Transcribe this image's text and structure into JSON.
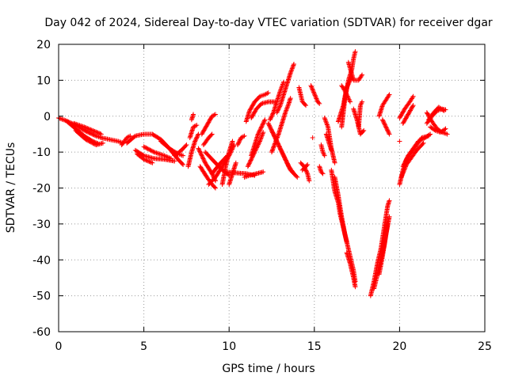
{
  "chart_data": {
    "type": "scatter",
    "title": "Day 042 of 2024, Sidereal Day-to-day VTEC variation (SDTVAR) for receiver dgar",
    "xlabel": "GPS time / hours",
    "ylabel": "SDTVAR / TECUs",
    "xlim": [
      0,
      25
    ],
    "ylim": [
      -60,
      20
    ],
    "xticks": [
      "0",
      "5",
      "10",
      "15",
      "20",
      "25"
    ],
    "yticks": [
      "20",
      "10",
      "0",
      "-10",
      "-20",
      "-30",
      "-40",
      "-50",
      "-60"
    ],
    "grid": true,
    "marker": "+",
    "color": "#ff0000",
    "tracks": [
      [
        [
          0.0,
          -0.5
        ],
        [
          0.4,
          -1.2
        ],
        [
          1.0,
          -2.5
        ],
        [
          1.6,
          -4.2
        ],
        [
          2.2,
          -5.5
        ],
        [
          2.5,
          -6.0
        ]
      ],
      [
        [
          0.5,
          -1.5
        ],
        [
          1.0,
          -3.5
        ],
        [
          1.5,
          -5.5
        ],
        [
          2.0,
          -7.0
        ],
        [
          2.3,
          -7.6
        ]
      ],
      [
        [
          0.9,
          -2.0
        ],
        [
          1.5,
          -3.0
        ],
        [
          2.0,
          -4.0
        ],
        [
          2.5,
          -5.0
        ]
      ],
      [
        [
          1.0,
          -4.0
        ],
        [
          1.6,
          -6.5
        ],
        [
          2.2,
          -8.0
        ],
        [
          2.6,
          -7.5
        ]
      ],
      [
        [
          2.5,
          -6.0
        ],
        [
          3.0,
          -6.5
        ],
        [
          3.5,
          -7.0
        ],
        [
          3.8,
          -7.5
        ]
      ],
      [
        [
          3.7,
          -8.0
        ],
        [
          4.0,
          -6.0
        ],
        [
          4.2,
          -5.5
        ]
      ],
      [
        [
          4.0,
          -7.5
        ],
        [
          4.5,
          -5.5
        ],
        [
          5.0,
          -5.0
        ],
        [
          5.5,
          -5.0
        ],
        [
          6.0,
          -6.5
        ],
        [
          6.5,
          -9.0
        ],
        [
          7.0,
          -12.0
        ],
        [
          7.3,
          -13.5
        ]
      ],
      [
        [
          4.5,
          -9.5
        ],
        [
          5.0,
          -11.0
        ],
        [
          5.6,
          -11.8
        ],
        [
          6.2,
          -12.0
        ],
        [
          6.8,
          -12.5
        ]
      ],
      [
        [
          4.6,
          -10.5
        ],
        [
          5.0,
          -12.0
        ],
        [
          5.5,
          -13.0
        ]
      ],
      [
        [
          5.0,
          -8.5
        ],
        [
          5.6,
          -10.0
        ],
        [
          6.2,
          -11.0
        ],
        [
          6.6,
          -11.8
        ]
      ],
      [
        [
          6.0,
          -7.0
        ],
        [
          6.5,
          -9.0
        ],
        [
          7.0,
          -10.5
        ],
        [
          7.3,
          -11.0
        ]
      ],
      [
        [
          6.8,
          -11.0
        ],
        [
          7.2,
          -9.5
        ],
        [
          7.5,
          -8.0
        ]
      ],
      [
        [
          7.7,
          -6.0
        ],
        [
          7.9,
          -3.0
        ],
        [
          8.1,
          -2.5
        ]
      ],
      [
        [
          7.6,
          -14.0
        ],
        [
          7.8,
          -10.0
        ],
        [
          8.0,
          -7.0
        ],
        [
          8.2,
          -5.0
        ]
      ],
      [
        [
          7.8,
          -1.0
        ],
        [
          7.9,
          0.5
        ]
      ],
      [
        [
          8.4,
          -5.0
        ],
        [
          8.7,
          -2.5
        ],
        [
          9.0,
          0.0
        ],
        [
          9.2,
          0.5
        ]
      ],
      [
        [
          8.2,
          -9.0
        ],
        [
          8.6,
          -13.0
        ],
        [
          9.0,
          -16.0
        ],
        [
          9.2,
          -18.0
        ]
      ],
      [
        [
          8.3,
          -14.0
        ],
        [
          8.7,
          -17.0
        ],
        [
          9.0,
          -19.0
        ],
        [
          9.2,
          -20.0
        ]
      ],
      [
        [
          8.6,
          -10.0
        ],
        [
          9.0,
          -12.0
        ],
        [
          9.5,
          -14.5
        ],
        [
          10.0,
          -16.5
        ]
      ],
      [
        [
          8.8,
          -19.0
        ],
        [
          9.2,
          -17.0
        ],
        [
          9.6,
          -14.0
        ],
        [
          10.0,
          -11.0
        ],
        [
          10.3,
          -8.0
        ]
      ],
      [
        [
          9.0,
          -16.0
        ],
        [
          9.5,
          -13.0
        ],
        [
          9.9,
          -11.0
        ]
      ],
      [
        [
          8.5,
          -8.0
        ],
        [
          8.8,
          -6.0
        ],
        [
          9.0,
          -5.0
        ]
      ],
      [
        [
          9.6,
          -19.0
        ],
        [
          9.8,
          -14.0
        ],
        [
          10.0,
          -10.0
        ],
        [
          10.2,
          -7.0
        ]
      ],
      [
        [
          10.0,
          -19.0
        ],
        [
          10.2,
          -16.0
        ],
        [
          10.4,
          -13.0
        ]
      ],
      [
        [
          9.8,
          -15.5
        ],
        [
          10.4,
          -15.8
        ],
        [
          11.0,
          -16.0
        ],
        [
          11.5,
          -16.5
        ]
      ],
      [
        [
          10.5,
          -8.0
        ],
        [
          10.7,
          -6.0
        ],
        [
          10.9,
          -5.5
        ]
      ],
      [
        [
          10.9,
          -17.0
        ],
        [
          11.2,
          -16.5
        ],
        [
          11.6,
          -16.0
        ],
        [
          12.0,
          -15.5
        ]
      ],
      [
        [
          11.3,
          -11.0
        ],
        [
          11.5,
          -8.0
        ],
        [
          11.7,
          -5.0
        ],
        [
          11.9,
          -3.0
        ],
        [
          12.1,
          -1.0
        ]
      ],
      [
        [
          11.1,
          -14.0
        ],
        [
          11.3,
          -12.0
        ],
        [
          11.5,
          -10.0
        ],
        [
          11.8,
          -7.0
        ],
        [
          12.0,
          -4.5
        ]
      ],
      [
        [
          11.0,
          -1.5
        ],
        [
          11.2,
          1.5
        ],
        [
          11.5,
          4.0
        ],
        [
          11.8,
          5.5
        ],
        [
          12.1,
          6.0
        ],
        [
          12.3,
          6.5
        ]
      ],
      [
        [
          11.3,
          -0.5
        ],
        [
          11.6,
          2.0
        ],
        [
          11.9,
          3.5
        ],
        [
          12.3,
          4.0
        ],
        [
          12.7,
          4.0
        ]
      ],
      [
        [
          12.5,
          -10.0
        ],
        [
          12.9,
          -5.0
        ],
        [
          13.1,
          -2.0
        ],
        [
          13.3,
          1.0
        ],
        [
          13.5,
          3.5
        ],
        [
          13.6,
          5.0
        ]
      ],
      [
        [
          12.8,
          1.0
        ],
        [
          13.0,
          3.0
        ],
        [
          13.2,
          6.0
        ],
        [
          13.4,
          9.0
        ],
        [
          13.6,
          12.0
        ],
        [
          13.8,
          14.5
        ]
      ],
      [
        [
          12.4,
          -1.0
        ],
        [
          12.6,
          1.0
        ],
        [
          12.8,
          4.0
        ],
        [
          13.0,
          7.0
        ],
        [
          13.2,
          9.5
        ]
      ],
      [
        [
          12.3,
          -2.0
        ],
        [
          12.7,
          -6.0
        ],
        [
          13.1,
          -10.0
        ],
        [
          13.5,
          -14.0
        ],
        [
          13.8,
          -16.0
        ]
      ],
      [
        [
          12.5,
          -4.0
        ],
        [
          12.9,
          -8.0
        ],
        [
          13.3,
          -12.0
        ],
        [
          13.6,
          -15.0
        ],
        [
          14.0,
          -17.0
        ]
      ],
      [
        [
          14.1,
          8.0
        ],
        [
          14.2,
          6.0
        ],
        [
          14.3,
          4.0
        ],
        [
          14.5,
          3.0
        ]
      ],
      [
        [
          14.2,
          -13.0
        ],
        [
          14.4,
          -14.0
        ],
        [
          14.6,
          -16.0
        ],
        [
          14.7,
          -18.0
        ]
      ],
      [
        [
          14.3,
          -15.0
        ],
        [
          14.6,
          -13.5
        ]
      ],
      [
        [
          14.8,
          8.5
        ],
        [
          15.2,
          4.0
        ],
        [
          15.3,
          3.5
        ]
      ],
      [
        [
          14.9,
          -6.0
        ]
      ],
      [
        [
          15.3,
          -14.0
        ],
        [
          15.4,
          -15.5
        ],
        [
          15.5,
          -16.0
        ]
      ],
      [
        [
          15.4,
          -8.0
        ],
        [
          15.5,
          -10.0
        ],
        [
          15.6,
          -11.0
        ]
      ],
      [
        [
          15.6,
          -0.5
        ],
        [
          15.8,
          -3.0
        ],
        [
          15.9,
          -6.0
        ],
        [
          16.0,
          -9.0
        ],
        [
          16.2,
          -13.0
        ]
      ],
      [
        [
          15.7,
          -5.0
        ],
        [
          15.9,
          -8.0
        ],
        [
          16.0,
          -9.5
        ]
      ],
      [
        [
          16.0,
          -15.0
        ],
        [
          16.2,
          -21.0
        ],
        [
          16.4,
          -24.0
        ],
        [
          16.5,
          -27.0
        ],
        [
          16.7,
          -31.0
        ],
        [
          16.9,
          -35.0
        ]
      ],
      [
        [
          16.2,
          -17.0
        ],
        [
          16.4,
          -22.0
        ],
        [
          16.6,
          -28.0
        ],
        [
          16.8,
          -33.0
        ],
        [
          17.0,
          -37.0
        ],
        [
          17.3,
          -43.0
        ],
        [
          17.4,
          -46.0
        ]
      ],
      [
        [
          16.9,
          -38.0
        ],
        [
          17.1,
          -41.0
        ],
        [
          17.3,
          -45.0
        ],
        [
          17.4,
          -47.5
        ]
      ],
      [
        [
          16.6,
          -3.0
        ],
        [
          16.8,
          5.0
        ],
        [
          17.0,
          10.0
        ],
        [
          17.2,
          13.0
        ],
        [
          17.3,
          16.0
        ],
        [
          17.4,
          18.0
        ]
      ],
      [
        [
          16.4,
          -1.5
        ],
        [
          16.7,
          3.0
        ],
        [
          16.9,
          8.0
        ],
        [
          17.2,
          11.0
        ]
      ],
      [
        [
          17.0,
          15.0
        ],
        [
          17.3,
          10.0
        ],
        [
          17.6,
          10.0
        ],
        [
          17.8,
          11.5
        ]
      ],
      [
        [
          16.6,
          8.5
        ],
        [
          16.8,
          7.0
        ],
        [
          17.0,
          5.0
        ],
        [
          17.1,
          4.0
        ]
      ],
      [
        [
          17.6,
          -3.0
        ],
        [
          17.7,
          3.0
        ],
        [
          17.8,
          4.0
        ]
      ],
      [
        [
          17.3,
          2.0
        ],
        [
          17.5,
          -1.0
        ],
        [
          17.7,
          -5.0
        ],
        [
          17.9,
          -4.0
        ]
      ],
      [
        [
          18.3,
          -50.0
        ],
        [
          18.5,
          -46.0
        ],
        [
          18.7,
          -41.0
        ],
        [
          18.9,
          -37.0
        ],
        [
          19.1,
          -31.0
        ],
        [
          19.3,
          -25.0
        ],
        [
          19.4,
          -23.5
        ]
      ],
      [
        [
          18.5,
          -48.0
        ],
        [
          18.8,
          -42.0
        ],
        [
          19.1,
          -36.0
        ],
        [
          19.3,
          -30.0
        ]
      ],
      [
        [
          18.8,
          -44.0
        ],
        [
          19.0,
          -39.0
        ],
        [
          19.2,
          -33.0
        ],
        [
          19.4,
          -28.0
        ]
      ],
      [
        [
          18.8,
          0.0
        ],
        [
          19.0,
          3.0
        ],
        [
          19.2,
          4.5
        ],
        [
          19.4,
          6.0
        ]
      ],
      [
        [
          19.0,
          -1.0
        ],
        [
          19.2,
          -3.0
        ],
        [
          19.4,
          -5.0
        ]
      ],
      [
        [
          20.0,
          -7.0
        ]
      ],
      [
        [
          20.0,
          -19.0
        ],
        [
          20.2,
          -15.0
        ],
        [
          20.4,
          -12.0
        ],
        [
          20.7,
          -10.0
        ],
        [
          21.0,
          -8.0
        ],
        [
          21.3,
          -6.0
        ],
        [
          21.7,
          -5.5
        ]
      ],
      [
        [
          20.2,
          -14.0
        ],
        [
          20.5,
          -11.0
        ],
        [
          20.8,
          -9.0
        ],
        [
          21.1,
          -7.0
        ],
        [
          21.5,
          -6.0
        ],
        [
          21.8,
          -5.0
        ]
      ],
      [
        [
          20.1,
          -17.0
        ],
        [
          20.4,
          -13.5
        ],
        [
          20.7,
          -11.5
        ],
        [
          21.0,
          -9.5
        ],
        [
          21.4,
          -7.5
        ]
      ],
      [
        [
          20.0,
          -0.5
        ],
        [
          20.3,
          2.0
        ],
        [
          20.6,
          4.0
        ],
        [
          20.8,
          5.5
        ]
      ],
      [
        [
          20.2,
          -2.0
        ],
        [
          20.5,
          0.5
        ],
        [
          20.8,
          3.0
        ]
      ],
      [
        [
          21.6,
          -2.0
        ],
        [
          21.9,
          0.0
        ],
        [
          22.2,
          1.5
        ],
        [
          22.5,
          2.0
        ],
        [
          22.7,
          1.8
        ]
      ],
      [
        [
          21.7,
          -1.0
        ],
        [
          22.0,
          1.0
        ],
        [
          22.3,
          2.5
        ],
        [
          22.6,
          1.5
        ]
      ],
      [
        [
          21.6,
          1.0
        ],
        [
          21.9,
          -1.5
        ],
        [
          22.2,
          -3.5
        ],
        [
          22.5,
          -4.5
        ],
        [
          22.8,
          -5.0
        ]
      ],
      [
        [
          21.8,
          -3.0
        ],
        [
          22.1,
          -4.0
        ],
        [
          22.4,
          -4.5
        ],
        [
          22.7,
          -3.5
        ]
      ]
    ]
  }
}
